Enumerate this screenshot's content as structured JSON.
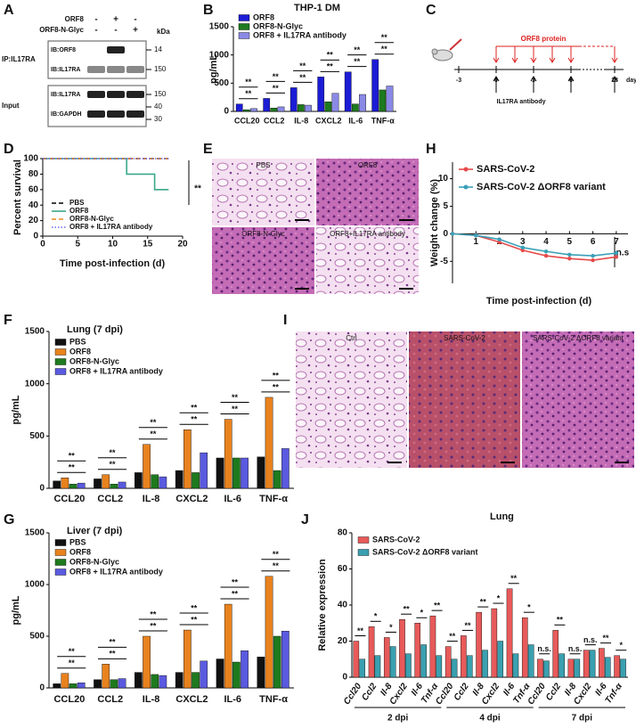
{
  "panel_labels": [
    "A",
    "B",
    "C",
    "D",
    "E",
    "F",
    "G",
    "H",
    "I",
    "J"
  ],
  "blot": {
    "conditions": [
      {
        "name": "ORF8",
        "marks": [
          "-",
          "+",
          "-"
        ]
      },
      {
        "name": "ORF8-N-Glyc",
        "marks": [
          "-",
          "-",
          "+"
        ]
      }
    ],
    "unit": "kDa",
    "sections": [
      {
        "label": "IP:IL17RA",
        "rows": [
          {
            "label": "IB:ORF8",
            "kda": [
              14
            ]
          },
          {
            "label": "IB:IL17RA",
            "kda": [
              150
            ]
          }
        ]
      },
      {
        "label": "Input",
        "rows": [
          {
            "label": "IB:IL17RA",
            "kda": [
              150
            ]
          },
          {
            "label": "IB:GAPDH",
            "kda": [
              40,
              30
            ]
          }
        ]
      }
    ]
  },
  "scheme": {
    "protein": "ORF8 protein",
    "antibody": "IL17RA antibody",
    "days": [
      -3,
      0,
      3,
      6,
      18
    ],
    "unit": "day"
  },
  "histology_E": [
    "PBS",
    "ORF8",
    "ORF8-N-Glyc",
    "ORF8+IL17RA antibody"
  ],
  "histology_I": [
    "Ctrl",
    "SARS-CoV-2",
    "SARS-CoV-2 ΔORF8 variant"
  ],
  "chart_data": [
    {
      "type": "bar",
      "title": "THP-1 DM",
      "y_label": "pg/mL",
      "categories": [
        "CCL20",
        "CCL2",
        "IL-8",
        "CXCL2",
        "IL-6",
        "TNF-α"
      ],
      "series": [
        {
          "name": "ORF8",
          "color": "#1c1cd6",
          "values": [
            130,
            230,
            420,
            610,
            700,
            920
          ]
        },
        {
          "name": "ORF8-N-Glyc",
          "color": "#1e7a1e",
          "values": [
            30,
            60,
            120,
            170,
            130,
            380
          ]
        },
        {
          "name": "ORF8 + IL17RA antibody",
          "color": "#8a8ae6",
          "values": [
            50,
            80,
            110,
            320,
            300,
            450
          ]
        }
      ],
      "ylim": [
        0,
        1500
      ],
      "yticks": [
        0,
        500,
        1000,
        1500
      ],
      "significance": [
        [
          "**",
          "**"
        ],
        [
          "**",
          "**"
        ],
        [
          "**",
          "**"
        ],
        [
          "**",
          "**"
        ],
        [
          "**",
          "**"
        ],
        [
          "**",
          "**"
        ]
      ]
    },
    {
      "type": "line",
      "y_label": "Percent survival",
      "x_label": "Time post-infection (d)",
      "xlim": [
        0,
        20
      ],
      "xticks": [
        0,
        5,
        10,
        15,
        20
      ],
      "ylim": [
        0,
        100
      ],
      "yticks": [
        0,
        20,
        40,
        60,
        80,
        100
      ],
      "annotation": "**",
      "series": [
        {
          "name": "PBS",
          "color": "#000000",
          "dash": "dashed",
          "x": [
            0,
            18
          ],
          "values": [
            100,
            100
          ]
        },
        {
          "name": "ORF8",
          "color": "#3aa88a",
          "dash": "solid",
          "x": [
            0,
            12,
            12,
            16,
            16,
            18
          ],
          "values": [
            100,
            100,
            80,
            80,
            60,
            60
          ]
        },
        {
          "name": "ORF8-N-Glyc",
          "color": "#f08a1e",
          "dash": "dashed",
          "x": [
            0,
            18
          ],
          "values": [
            100,
            100
          ]
        },
        {
          "name": "ORF8 + IL17RA antibody",
          "color": "#6a6af0",
          "dash": "dotted",
          "x": [
            0,
            18
          ],
          "values": [
            100,
            100
          ]
        }
      ]
    },
    {
      "type": "line",
      "y_label": "Weight change (%)",
      "x_label": "Time post-infection (d)",
      "x": [
        0,
        1,
        2,
        3,
        4,
        5,
        6,
        7
      ],
      "xlim": [
        0,
        7.5
      ],
      "xticks": [
        1,
        2,
        3,
        4,
        5,
        6,
        7
      ],
      "ylim": [
        -9,
        13
      ],
      "yticks": [
        -5,
        0,
        5,
        10
      ],
      "markers": true,
      "x_axis_at_zero": true,
      "annotation": "n.s",
      "series": [
        {
          "name": "SARS-CoV-2",
          "color": "#e84a4a",
          "dash": "solid",
          "values": [
            0,
            -0.3,
            -1.5,
            -3,
            -4,
            -4.5,
            -4.8,
            -4.2
          ]
        },
        {
          "name": "SARS-CoV-2 ΔORF8 variant",
          "color": "#3aa0b8",
          "dash": "solid",
          "values": [
            0,
            -0.3,
            -1,
            -2.5,
            -3.2,
            -3.8,
            -4,
            -3.5
          ]
        }
      ]
    },
    {
      "type": "bar",
      "title": "Lung (7 dpi)",
      "y_label": "pg/mL",
      "categories": [
        "CCL20",
        "CCL2",
        "IL-8",
        "CXCL2",
        "IL-6",
        "TNF-α"
      ],
      "series": [
        {
          "name": "PBS",
          "color": "#111111",
          "values": [
            70,
            90,
            150,
            170,
            290,
            300
          ]
        },
        {
          "name": "ORF8",
          "color": "#e8821e",
          "values": [
            100,
            130,
            420,
            560,
            660,
            870
          ]
        },
        {
          "name": "ORF8-N-Glyc",
          "color": "#1e7a1e",
          "values": [
            40,
            40,
            130,
            150,
            290,
            170
          ]
        },
        {
          "name": "ORF8 + IL17RA antibody",
          "color": "#5a5ae0",
          "values": [
            50,
            60,
            110,
            340,
            290,
            380
          ]
        }
      ],
      "ylim": [
        0,
        1500
      ],
      "yticks": [
        0,
        500,
        1000,
        1500
      ],
      "significance": [
        [
          "**",
          "**"
        ],
        [
          "**",
          "**"
        ],
        [
          "**",
          "**"
        ],
        [
          "**",
          "**"
        ],
        [
          "**",
          "**"
        ],
        [
          "**",
          "**"
        ]
      ]
    },
    {
      "type": "bar",
      "title": "Liver (7 dpi)",
      "y_label": "pg/mL",
      "categories": [
        "CCL20",
        "CCL2",
        "IL-8",
        "CXCL2",
        "IL-6",
        "TNF-α"
      ],
      "series": [
        {
          "name": "PBS",
          "color": "#111111",
          "values": [
            40,
            80,
            150,
            150,
            280,
            300
          ]
        },
        {
          "name": "ORF8",
          "color": "#e8821e",
          "values": [
            140,
            230,
            500,
            560,
            810,
            1080
          ]
        },
        {
          "name": "ORF8-N-Glyc",
          "color": "#1e7a1e",
          "values": [
            40,
            80,
            130,
            150,
            250,
            500
          ]
        },
        {
          "name": "ORF8 + IL17RA antibody",
          "color": "#5a5ae0",
          "values": [
            50,
            90,
            120,
            260,
            360,
            550
          ]
        }
      ],
      "ylim": [
        0,
        1500
      ],
      "yticks": [
        0,
        500,
        1000,
        1500
      ],
      "significance": [
        [
          "**",
          "**"
        ],
        [
          "**",
          "**"
        ],
        [
          "**",
          "**"
        ],
        [
          "**",
          "**"
        ],
        [
          "**",
          "**"
        ],
        [
          "**",
          "**"
        ]
      ]
    },
    {
      "type": "bar",
      "title": "Lung",
      "y_label": "Relative expression",
      "italic_categories": true,
      "categories": [
        "Ccl20",
        "Ccl2",
        "Il-8",
        "Cxcl2",
        "Il-6",
        "Tnf-α",
        "Ccl20",
        "Ccl2",
        "Il-8",
        "Cxcl2",
        "Il-6",
        "Tnf-α",
        "Ccl20",
        "Ccl2",
        "Il-8",
        "Cxcl2",
        "Il-6",
        "Tnf-α"
      ],
      "groups": [
        "2 dpi",
        "4 dpi",
        "7 dpi"
      ],
      "series": [
        {
          "name": "SARS-CoV-2",
          "color": "#e85a5a",
          "values": [
            20,
            28,
            22,
            32,
            30,
            34,
            17,
            23,
            36,
            38,
            49,
            33,
            10,
            26,
            10,
            15,
            16,
            12
          ]
        },
        {
          "name": "SARS-CoV-2 ΔORF8 variant",
          "color": "#3aa0b0",
          "values": [
            10,
            12,
            17,
            13,
            18,
            12,
            10,
            12,
            15,
            20,
            13,
            18,
            9,
            13,
            10,
            15,
            11,
            10
          ]
        }
      ],
      "ylim": [
        0,
        80
      ],
      "yticks": [
        0,
        20,
        40,
        60,
        80
      ],
      "significance": [
        [
          "**"
        ],
        [
          "*"
        ],
        [
          "*"
        ],
        [
          "**"
        ],
        [
          "*"
        ],
        [
          "**"
        ],
        [
          "**"
        ],
        [
          "**"
        ],
        [
          "**"
        ],
        [
          "*"
        ],
        [
          "**"
        ],
        [
          "*"
        ],
        [
          "n.s."
        ],
        [
          "**"
        ],
        [
          "n.s."
        ],
        [
          "n.s."
        ],
        [
          "**"
        ],
        [
          "*"
        ]
      ]
    }
  ]
}
